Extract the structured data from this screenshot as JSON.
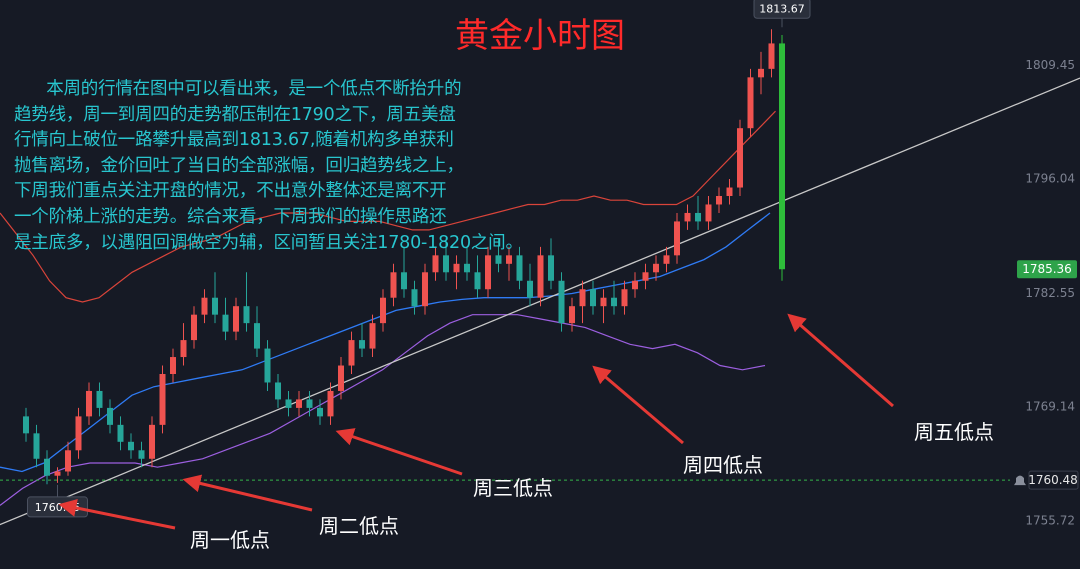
{
  "title": "黄金小时图",
  "commentary": "      本周的行情在图中可以看出来，是一个低点不断抬升的\n趋势线，周一到周四的走势都压制在1790之下，周五美盘\n行情向上破位一路攀升最高到1813.67,随着机构多单获利\n抛售离场，金价回吐了当日的全部涨幅，回归趋势线之上，\n下周我们重点关注开盘的情况，不出意外整体还是离不开\n一个阶梯上涨的走势。综合来看，下周我们的操作思路还\n是主底多，以遇阻回调做空为辅，区间暂且关注1780-1820之间。",
  "annotations": {
    "mon": "周一低点",
    "tue": "周二低点",
    "wed": "周三低点",
    "thu": "周四低点",
    "fri": "周五低点"
  },
  "colors": {
    "background": "#161a25",
    "up": "#ef5350",
    "down": "#26a69a",
    "upper_band": "#d9443a",
    "lower_band": "#9c5fe0",
    "ma": "#2f7bf5",
    "trendline": "#c8c8c8",
    "arrow": "#e53935",
    "commentary": "#28c6cf",
    "title": "#ff2a2a",
    "last_price_bg": "#2ea34a",
    "low_line": "#35b44a"
  },
  "chart_data": {
    "type": "candlestick",
    "title": "黄金小时图",
    "ylim": [
      1752.0,
      1815.0
    ],
    "yticks": [
      1809.45,
      1796.04,
      1782.55,
      1769.14,
      1755.72
    ],
    "last_price": 1785.36,
    "high_label": 1813.67,
    "low_label": 1760.15,
    "low_line_price": 1760.48,
    "ohlc": [
      [
        1768.0,
        1769.0,
        1765.0,
        1766.0
      ],
      [
        1766.0,
        1767.0,
        1762.0,
        1763.0
      ],
      [
        1763.0,
        1764.0,
        1760.0,
        1761.0
      ],
      [
        1761.0,
        1762.0,
        1760.15,
        1761.5
      ],
      [
        1761.5,
        1765.0,
        1761.0,
        1764.0
      ],
      [
        1764.0,
        1769.0,
        1763.0,
        1768.0
      ],
      [
        1768.0,
        1772.0,
        1767.0,
        1771.0
      ],
      [
        1771.0,
        1772.0,
        1768.0,
        1769.0
      ],
      [
        1769.0,
        1770.0,
        1766.0,
        1767.0
      ],
      [
        1767.0,
        1768.0,
        1764.0,
        1765.0
      ],
      [
        1765.0,
        1766.0,
        1763.0,
        1764.0
      ],
      [
        1764.0,
        1765.0,
        1762.0,
        1763.0
      ],
      [
        1763.0,
        1768.0,
        1762.0,
        1767.0
      ],
      [
        1767.0,
        1774.0,
        1766.0,
        1773.0
      ],
      [
        1773.0,
        1776.0,
        1772.0,
        1775.0
      ],
      [
        1775.0,
        1779.0,
        1774.0,
        1777.0
      ],
      [
        1777.0,
        1781.0,
        1776.0,
        1780.0
      ],
      [
        1780.0,
        1783.0,
        1779.0,
        1782.0
      ],
      [
        1782.0,
        1785.0,
        1779.0,
        1780.0
      ],
      [
        1780.0,
        1782.0,
        1777.0,
        1778.0
      ],
      [
        1778.0,
        1782.0,
        1777.0,
        1781.0
      ],
      [
        1781.0,
        1785.0,
        1778.0,
        1779.0
      ],
      [
        1779.0,
        1781.0,
        1775.0,
        1776.0
      ],
      [
        1776.0,
        1777.0,
        1771.0,
        1772.0
      ],
      [
        1772.0,
        1773.0,
        1769.0,
        1770.0
      ],
      [
        1770.0,
        1771.0,
        1768.0,
        1769.0
      ],
      [
        1769.0,
        1771.0,
        1768.0,
        1770.0
      ],
      [
        1770.0,
        1771.0,
        1768.0,
        1769.0
      ],
      [
        1769.0,
        1770.0,
        1767.0,
        1768.0
      ],
      [
        1768.0,
        1772.0,
        1767.0,
        1771.0
      ],
      [
        1771.0,
        1775.0,
        1770.0,
        1774.0
      ],
      [
        1774.0,
        1778.0,
        1773.0,
        1777.0
      ],
      [
        1777.0,
        1779.0,
        1775.0,
        1776.0
      ],
      [
        1776.0,
        1780.0,
        1775.0,
        1779.0
      ],
      [
        1779.0,
        1783.0,
        1778.0,
        1782.0
      ],
      [
        1782.0,
        1786.0,
        1781.0,
        1785.0
      ],
      [
        1785.0,
        1788.0,
        1782.0,
        1783.0
      ],
      [
        1783.0,
        1784.0,
        1780.0,
        1781.0
      ],
      [
        1781.0,
        1786.0,
        1780.0,
        1785.0
      ],
      [
        1785.0,
        1788.0,
        1784.0,
        1787.0
      ],
      [
        1787.0,
        1789.0,
        1784.0,
        1785.0
      ],
      [
        1785.0,
        1787.0,
        1783.0,
        1786.0
      ],
      [
        1786.0,
        1788.0,
        1784.0,
        1785.0
      ],
      [
        1785.0,
        1787.0,
        1782.0,
        1783.0
      ],
      [
        1783.0,
        1788.0,
        1782.0,
        1787.0
      ],
      [
        1787.0,
        1789.0,
        1785.0,
        1786.0
      ],
      [
        1786.0,
        1788.0,
        1784.0,
        1787.0
      ],
      [
        1787.0,
        1788.0,
        1783.0,
        1784.0
      ],
      [
        1784.0,
        1786.0,
        1781.0,
        1782.0
      ],
      [
        1782.0,
        1788.0,
        1781.0,
        1787.0
      ],
      [
        1787.0,
        1789.0,
        1783.0,
        1784.0
      ],
      [
        1784.0,
        1785.0,
        1778.0,
        1779.0
      ],
      [
        1779.0,
        1782.0,
        1778.0,
        1781.0
      ],
      [
        1781.0,
        1784.0,
        1779.0,
        1783.0
      ],
      [
        1783.0,
        1784.0,
        1780.0,
        1781.0
      ],
      [
        1781.0,
        1783.0,
        1779.0,
        1782.0
      ],
      [
        1782.0,
        1784.0,
        1780.0,
        1781.0
      ],
      [
        1781.0,
        1784.0,
        1780.0,
        1783.0
      ],
      [
        1783.0,
        1785.0,
        1782.0,
        1784.0
      ],
      [
        1784.0,
        1786.0,
        1783.0,
        1785.0
      ],
      [
        1785.0,
        1787.0,
        1784.0,
        1786.0
      ],
      [
        1786.0,
        1788.0,
        1785.0,
        1787.0
      ],
      [
        1787.0,
        1792.0,
        1786.0,
        1791.0
      ],
      [
        1791.0,
        1793.0,
        1790.0,
        1792.0
      ],
      [
        1792.0,
        1794.0,
        1790.0,
        1791.0
      ],
      [
        1791.0,
        1794.0,
        1790.0,
        1793.0
      ],
      [
        1793.0,
        1795.0,
        1792.0,
        1794.0
      ],
      [
        1794.0,
        1796.0,
        1793.0,
        1795.0
      ],
      [
        1795.0,
        1803.0,
        1794.0,
        1802.0
      ],
      [
        1802.0,
        1809.0,
        1801.0,
        1808.0
      ],
      [
        1808.0,
        1811.0,
        1806.0,
        1809.0
      ],
      [
        1809.0,
        1813.67,
        1808.0,
        1812.0
      ],
      [
        1812.0,
        1813.0,
        1784.0,
        1785.36
      ]
    ],
    "upper_band": [
      1792.0,
      1789.5,
      1787.0,
      1784.0,
      1782.0,
      1781.5,
      1782.0,
      1783.5,
      1785.0,
      1786.0,
      1787.0,
      1788.0,
      1788.5,
      1789.0,
      1790.0,
      1791.0,
      1791.5,
      1792.0,
      1792.0,
      1792.0,
      1791.5,
      1791.0,
      1791.0,
      1791.0,
      1790.5,
      1790.0,
      1790.0,
      1790.5,
      1791.0,
      1791.5,
      1792.0,
      1792.5,
      1793.0,
      1793.0,
      1793.5,
      1793.5,
      1794.0,
      1793.5,
      1793.5,
      1793.0,
      1793.0,
      1793.0,
      1794.0,
      1796.0,
      1798.0,
      1800.0,
      1802.0,
      1804.0
    ],
    "ma": [
      1762.0,
      1761.5,
      1762.5,
      1764.5,
      1766.5,
      1768.5,
      1770.5,
      1771.5,
      1772.0,
      1772.5,
      1773.0,
      1773.5,
      1774.5,
      1775.5,
      1776.5,
      1777.5,
      1778.5,
      1779.5,
      1780.5,
      1781.0,
      1781.5,
      1781.8,
      1782.0,
      1782.0,
      1782.0,
      1782.2,
      1782.5,
      1783.0,
      1783.5,
      1784.0,
      1784.5,
      1785.5,
      1786.5,
      1788.0,
      1790.0,
      1792.0
    ],
    "lower_band": [
      1757.5,
      1759.5,
      1761.0,
      1762.0,
      1762.5,
      1762.5,
      1762.5,
      1762.0,
      1762.5,
      1763.0,
      1764.0,
      1765.0,
      1766.0,
      1767.5,
      1769.0,
      1770.5,
      1772.0,
      1773.5,
      1775.5,
      1777.5,
      1779.0,
      1780.0,
      1780.0,
      1780.0,
      1779.5,
      1779.0,
      1778.5,
      1777.5,
      1776.5,
      1776.0,
      1776.5,
      1775.5,
      1774.0,
      1773.5,
      1774.0
    ],
    "trendline": {
      "from": [
        0,
        1756.5
      ],
      "to": [
        82,
        1798.5
      ]
    }
  }
}
